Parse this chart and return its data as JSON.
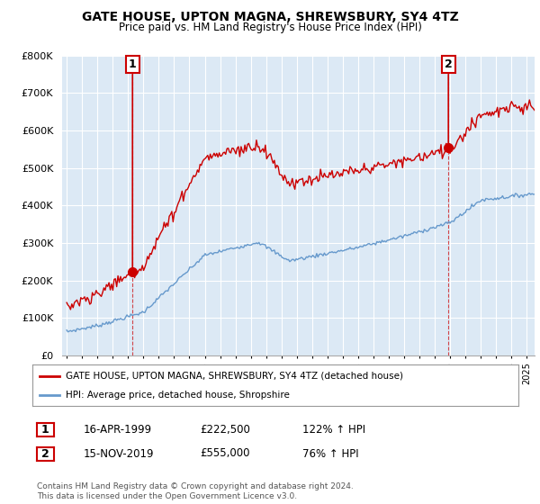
{
  "title": "GATE HOUSE, UPTON MAGNA, SHREWSBURY, SY4 4TZ",
  "subtitle": "Price paid vs. HM Land Registry's House Price Index (HPI)",
  "legend_line1": "GATE HOUSE, UPTON MAGNA, SHREWSBURY, SY4 4TZ (detached house)",
  "legend_line2": "HPI: Average price, detached house, Shropshire",
  "sale1_date": "16-APR-1999",
  "sale1_price": "£222,500",
  "sale1_hpi": "122% ↑ HPI",
  "sale2_date": "15-NOV-2019",
  "sale2_price": "£555,000",
  "sale2_hpi": "76% ↑ HPI",
  "footnote": "Contains HM Land Registry data © Crown copyright and database right 2024.\nThis data is licensed under the Open Government Licence v3.0.",
  "line_color_red": "#cc0000",
  "line_color_blue": "#6699cc",
  "plot_bg_color": "#dce9f5",
  "bg_color": "#ffffff",
  "grid_color": "#ffffff",
  "ylim": [
    0,
    800000
  ],
  "yticks": [
    0,
    100000,
    200000,
    300000,
    400000,
    500000,
    600000,
    700000,
    800000
  ],
  "ytick_labels": [
    "£0",
    "£100K",
    "£200K",
    "£300K",
    "£400K",
    "£500K",
    "£600K",
    "£700K",
    "£800K"
  ],
  "sale1_x": 1999.29,
  "sale1_y": 222500,
  "sale2_x": 2019.88,
  "sale2_y": 555000,
  "xlim_left": 1994.7,
  "xlim_right": 2025.5
}
